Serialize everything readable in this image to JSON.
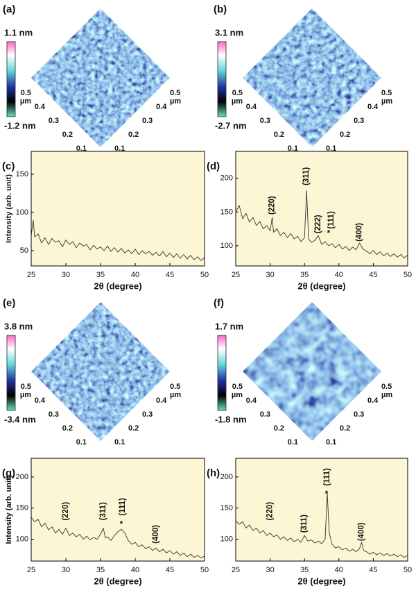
{
  "afm_panels": [
    {
      "label": "(a)",
      "max": "1.1 nm",
      "min": "-1.2 nm",
      "unit": "µm",
      "ticks": [
        "0.5",
        "0.4",
        "0.3",
        "0.2",
        "0.1"
      ]
    },
    {
      "label": "(b)",
      "max": "3.1 nm",
      "min": "-2.7 nm",
      "unit": "µm",
      "ticks": [
        "0.5",
        "0.4",
        "0.3",
        "0.2",
        "0.1"
      ]
    },
    {
      "label": "(e)",
      "max": "3.8 nm",
      "min": "-3.4 nm",
      "unit": "µm",
      "ticks": [
        "0.5",
        "0.4",
        "0.3",
        "0.2",
        "0.1"
      ]
    },
    {
      "label": "(f)",
      "max": "1.7 nm",
      "min": "-1.8 nm",
      "unit": "µm",
      "ticks": [
        "0.5",
        "0.4",
        "0.3",
        "0.2",
        "0.1"
      ]
    }
  ],
  "chart_data": [
    {
      "type": "line",
      "panel_label": "(c)",
      "xlabel": "2θ (degree)",
      "ylabel": "Intensity (arb. unit)",
      "color": "#333333",
      "background": "#fcf6d4",
      "xlim": [
        25,
        50
      ],
      "xticks": [
        25,
        30,
        35,
        40,
        45,
        50
      ],
      "ylim": [
        30,
        180
      ],
      "yticks": [
        50,
        100,
        150
      ],
      "x": [
        25,
        25.3,
        25.5,
        26,
        26.5,
        27,
        27.5,
        28,
        28.5,
        29,
        29.5,
        30,
        30.5,
        31,
        31.5,
        32,
        32.5,
        33,
        33.5,
        34,
        34.5,
        35,
        35.5,
        36,
        36.5,
        37,
        37.5,
        38,
        38.5,
        39,
        39.5,
        40,
        40.5,
        41,
        41.5,
        42,
        42.5,
        43,
        43.5,
        44,
        44.5,
        45,
        45.5,
        46,
        46.5,
        47,
        47.5,
        48,
        48.5,
        49,
        49.5,
        50
      ],
      "values": [
        70,
        90,
        68,
        72,
        60,
        67,
        58,
        66,
        61,
        63,
        55,
        64,
        58,
        62,
        54,
        60,
        56,
        58,
        51,
        57,
        52,
        55,
        50,
        56,
        49,
        54,
        48,
        53,
        47,
        51,
        46,
        52,
        45,
        50,
        46,
        49,
        44,
        48,
        43,
        49,
        42,
        47,
        41,
        46,
        40,
        45,
        39,
        44,
        38,
        42,
        37,
        41
      ],
      "annotations": []
    },
    {
      "type": "line",
      "panel_label": "(d)",
      "xlabel": "2θ (degree)",
      "color": "#333333",
      "background": "#fcf6d4",
      "xlim": [
        25,
        50
      ],
      "xticks": [
        25,
        30,
        35,
        40,
        45,
        50
      ],
      "ylim": [
        70,
        240
      ],
      "yticks": [
        100,
        150,
        200
      ],
      "x": [
        25,
        25.5,
        26,
        26.5,
        27,
        27.5,
        28,
        28.5,
        29,
        29.5,
        30,
        30.3,
        30.5,
        31,
        31.5,
        32,
        32.5,
        33,
        33.5,
        34,
        34.5,
        35,
        35.3,
        35.6,
        36,
        36.5,
        37,
        37.5,
        38,
        38.5,
        39,
        39.5,
        40,
        40.5,
        41,
        41.5,
        42,
        42.5,
        43,
        43.5,
        44,
        44.5,
        45,
        45.5,
        46,
        46.5,
        47,
        47.5,
        48,
        48.5,
        49,
        49.5,
        50
      ],
      "values": [
        150,
        160,
        140,
        148,
        135,
        142,
        130,
        136,
        125,
        130,
        122,
        142,
        120,
        125,
        115,
        120,
        112,
        118,
        110,
        114,
        106,
        112,
        182,
        110,
        105,
        108,
        115,
        102,
        106,
        100,
        103,
        97,
        102,
        95,
        99,
        93,
        98,
        94,
        104,
        95,
        92,
        88,
        93,
        87,
        91,
        85,
        89,
        84,
        88,
        83,
        87,
        82,
        86
      ],
      "annotations": [
        {
          "text": "(220)",
          "x": 30.3,
          "y": 160
        },
        {
          "text": "(311)",
          "x": 35.3,
          "y": 203
        },
        {
          "text": "(222)",
          "x": 37,
          "y": 132
        },
        {
          "text": "(111)",
          "x": 38.9,
          "y": 138
        },
        {
          "text": "*",
          "x": 38.5,
          "y": 118,
          "color": "#d040c0"
        },
        {
          "text": "(400)",
          "x": 43,
          "y": 120
        }
      ]
    },
    {
      "type": "line",
      "panel_label": "(g)",
      "xlabel": "2θ (degree)",
      "ylabel": "Intensity (arb. unit)",
      "color": "#333333",
      "background": "#fcf6d4",
      "xlim": [
        25,
        50
      ],
      "xticks": [
        25,
        30,
        35,
        40,
        45,
        50
      ],
      "ylim": [
        65,
        230
      ],
      "yticks": [
        100,
        150,
        200
      ],
      "x": [
        25,
        25.5,
        26,
        26.5,
        27,
        27.5,
        28,
        28.5,
        29,
        29.5,
        30,
        30.5,
        31,
        31.5,
        32,
        32.5,
        33,
        33.5,
        34,
        34.5,
        35,
        35.4,
        35.7,
        36,
        36.5,
        37,
        37.5,
        38,
        38.5,
        39,
        39.5,
        40,
        40.5,
        41,
        41.5,
        42,
        42.5,
        43,
        43.5,
        44,
        44.5,
        45,
        45.5,
        46,
        46.5,
        47,
        47.5,
        48,
        48.5,
        49,
        49.5,
        50
      ],
      "values": [
        135,
        128,
        132,
        120,
        126,
        115,
        120,
        110,
        116,
        108,
        118,
        106,
        110,
        104,
        108,
        100,
        105,
        99,
        103,
        100,
        108,
        118,
        102,
        104,
        98,
        106,
        112,
        116,
        110,
        98,
        92,
        95,
        88,
        91,
        85,
        88,
        82,
        86,
        80,
        84,
        78,
        82,
        76,
        80,
        74,
        78,
        72,
        76,
        71,
        74,
        70,
        73
      ],
      "annotations": [
        {
          "text": "(220)",
          "x": 30,
          "y": 145
        },
        {
          "text": "(311)",
          "x": 35.4,
          "y": 145
        },
        {
          "text": "(111)",
          "x": 38.2,
          "y": 152
        },
        {
          "text": "*",
          "x": 38,
          "y": 124,
          "color": "#d040c0"
        },
        {
          "text": "(400)",
          "x": 43,
          "y": 108
        }
      ]
    },
    {
      "type": "line",
      "panel_label": "(h)",
      "xlabel": "2θ (degree)",
      "color": "#333333",
      "background": "#fcf6d4",
      "xlim": [
        25,
        50
      ],
      "xticks": [
        25,
        30,
        35,
        40,
        45,
        50
      ],
      "ylim": [
        65,
        230
      ],
      "yticks": [
        100,
        150,
        200
      ],
      "x": [
        25,
        25.5,
        26,
        26.5,
        27,
        27.5,
        28,
        28.5,
        29,
        29.5,
        30,
        30.5,
        31,
        31.5,
        32,
        32.5,
        33,
        33.5,
        34,
        34.5,
        35,
        35.5,
        36,
        36.5,
        37,
        37.5,
        38,
        38.3,
        38.6,
        39,
        39.5,
        40,
        40.5,
        41,
        41.5,
        42,
        42.5,
        43,
        43.3,
        43.6,
        44,
        44.5,
        45,
        45.5,
        46,
        46.5,
        47,
        47.5,
        48,
        48.5,
        49,
        49.5,
        50
      ],
      "values": [
        130,
        124,
        128,
        118,
        123,
        114,
        118,
        110,
        114,
        106,
        110,
        104,
        107,
        100,
        104,
        98,
        102,
        96,
        100,
        95,
        106,
        97,
        99,
        94,
        97,
        93,
        100,
        175,
        110,
        92,
        86,
        88,
        83,
        86,
        81,
        84,
        80,
        85,
        95,
        82,
        80,
        76,
        79,
        75,
        78,
        74,
        77,
        73,
        76,
        72,
        75,
        71,
        74
      ],
      "annotations": [
        {
          "text": "(220)",
          "x": 30,
          "y": 145
        },
        {
          "text": "(311)",
          "x": 35,
          "y": 125
        },
        {
          "text": "(111)",
          "x": 38.3,
          "y": 200
        },
        {
          "text": "*",
          "x": 38.2,
          "y": 172,
          "color": "#d040c0"
        },
        {
          "text": "(400)",
          "x": 43.3,
          "y": 112
        }
      ]
    }
  ]
}
